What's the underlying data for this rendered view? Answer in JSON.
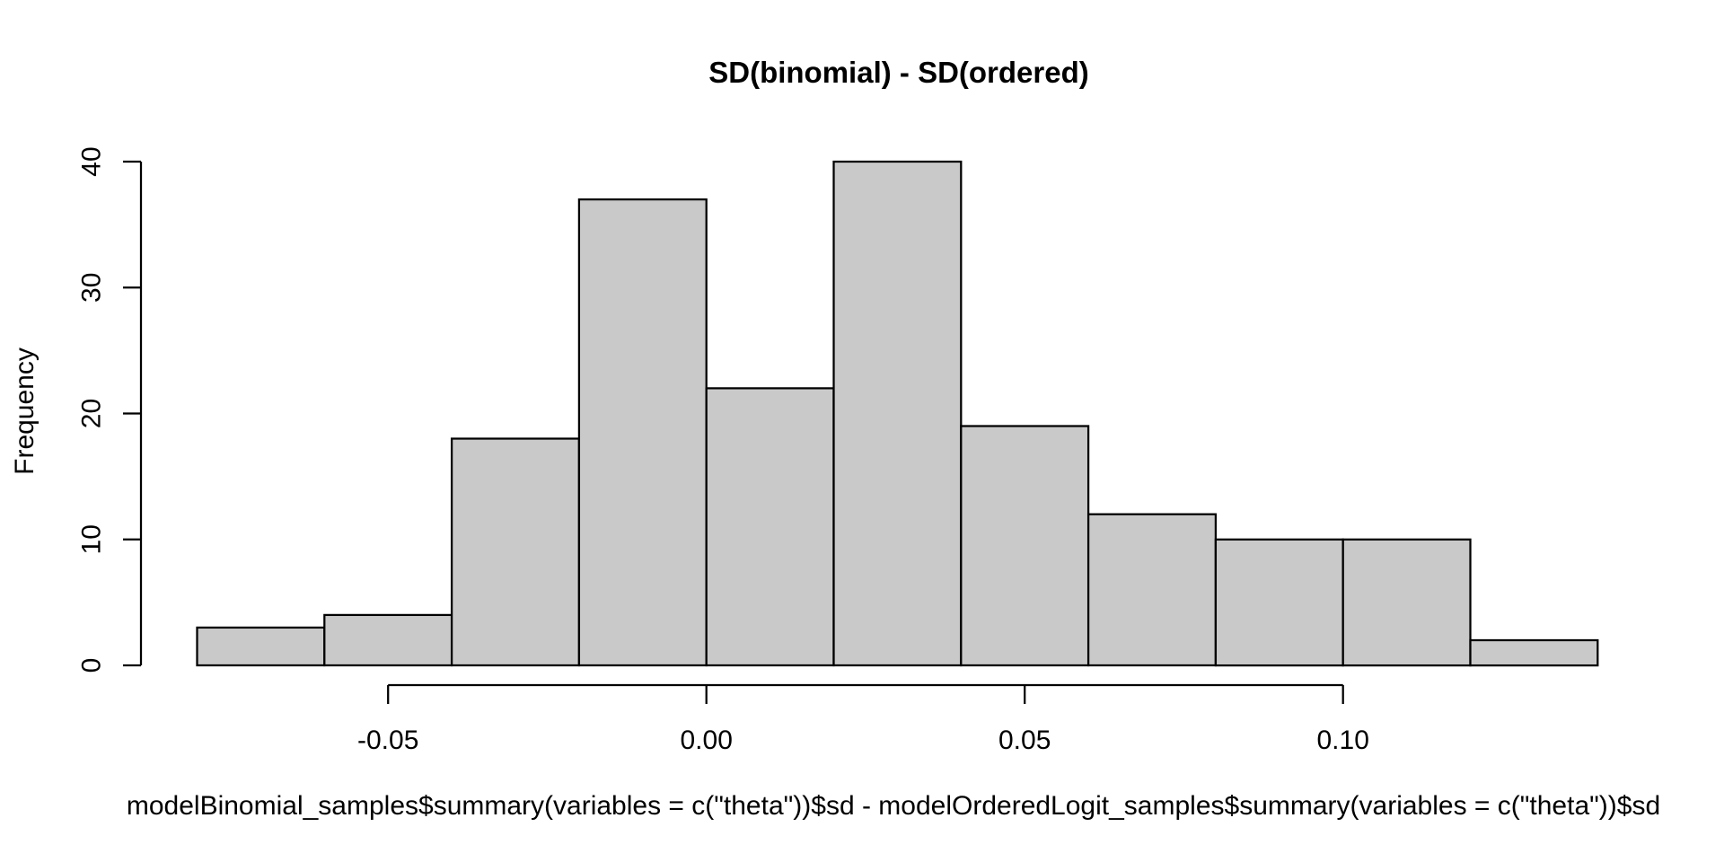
{
  "chart_data": {
    "type": "bar",
    "subtype": "histogram",
    "title": "SD(binomial) - SD(ordered)",
    "xlabel": "modelBinomial_samples$summary(variables = c(\"theta\"))$sd - modelOrderedLogit_samples$summary(variables = c(\"theta\"))$sd",
    "ylabel": "Frequency",
    "bin_start": -0.08,
    "bin_width": 0.02,
    "bin_edges": [
      -0.08,
      -0.06,
      -0.04,
      -0.02,
      0.0,
      0.02,
      0.04,
      0.06,
      0.08,
      0.1,
      0.12,
      0.14
    ],
    "counts": [
      3,
      4,
      18,
      37,
      22,
      40,
      19,
      12,
      10,
      10,
      2
    ],
    "x_tick_values": [
      -0.05,
      0.0,
      0.05,
      0.1
    ],
    "x_tick_labels": [
      "-0.05",
      "0.00",
      "0.05",
      "0.10"
    ],
    "y_tick_values": [
      0,
      10,
      20,
      30,
      40
    ],
    "y_tick_labels": [
      "0",
      "10",
      "20",
      "30",
      "40"
    ],
    "xlim": [
      -0.08,
      0.14
    ],
    "ylim": [
      0,
      40
    ],
    "grid": false,
    "legend": false,
    "bar_fill": "#c9c9c9",
    "bar_stroke": "#000000",
    "axis_color": "#000000",
    "text_color": "#000000",
    "background": "#ffffff"
  }
}
